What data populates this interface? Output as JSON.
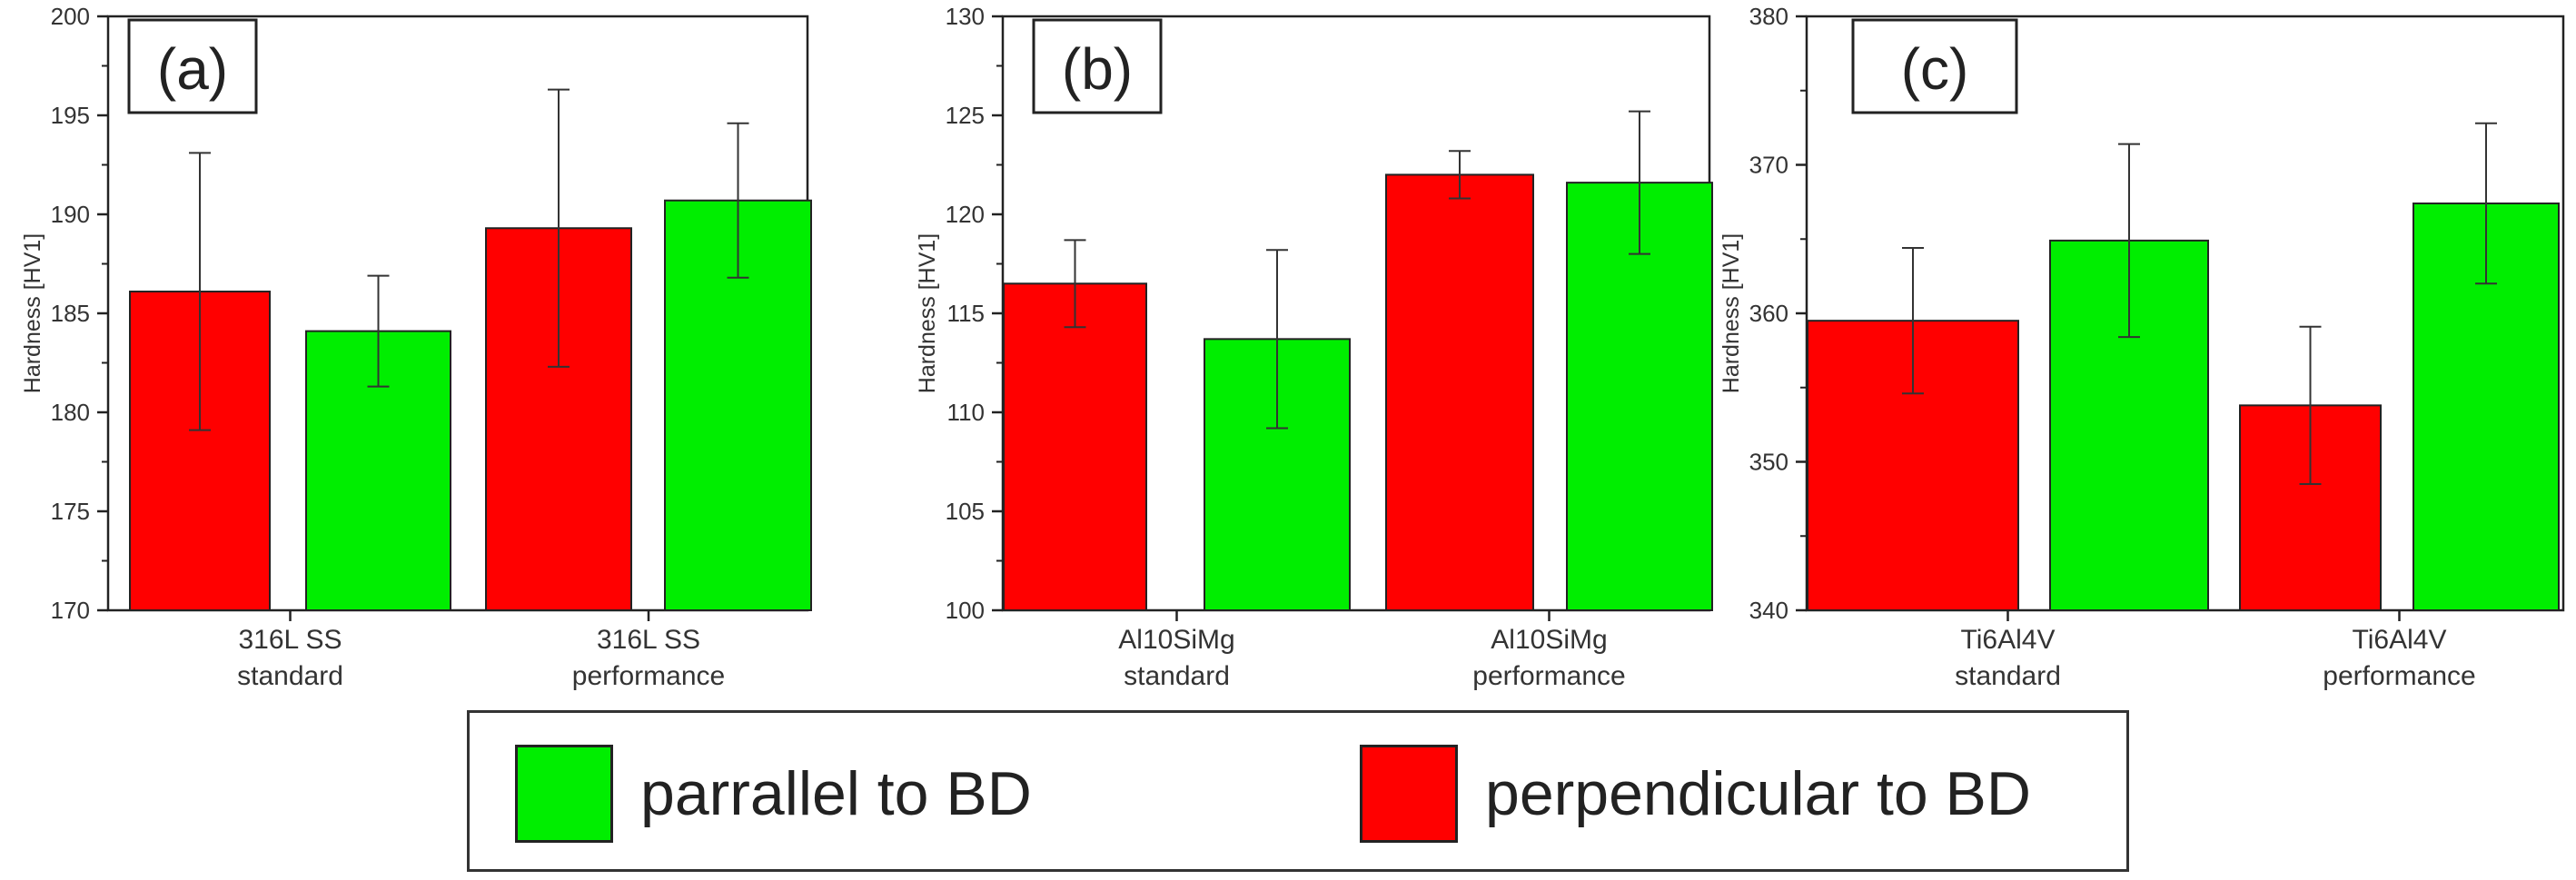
{
  "chart_data": [
    {
      "type": "bar",
      "panel_label": "(a)",
      "ylabel": "Hardness [HV1]",
      "ylim": [
        170,
        200
      ],
      "yticks": [
        170,
        175,
        180,
        185,
        190,
        195,
        200
      ],
      "categories": [
        [
          "316L SS",
          "standard"
        ],
        [
          "316L SS",
          "performance"
        ]
      ],
      "series": [
        {
          "name": "perpendicular to BD",
          "color": "#ff0000",
          "values": [
            186.1,
            189.3
          ],
          "errors": [
            7.0,
            7.0
          ]
        },
        {
          "name": "parrallel to BD",
          "color": "#00ee00",
          "values": [
            184.1,
            190.7
          ],
          "errors": [
            2.8,
            3.9
          ]
        }
      ]
    },
    {
      "type": "bar",
      "panel_label": "(b)",
      "ylabel": "Hardness [HV1]",
      "ylim": [
        100,
        130
      ],
      "yticks": [
        100,
        105,
        110,
        115,
        120,
        125,
        130
      ],
      "categories": [
        [
          "Al10SiMg",
          "standard"
        ],
        [
          "Al10SiMg",
          "performance"
        ]
      ],
      "series": [
        {
          "name": "perpendicular to BD",
          "color": "#ff0000",
          "values": [
            116.5,
            122.0
          ],
          "errors": [
            2.2,
            1.2
          ]
        },
        {
          "name": "parrallel to BD",
          "color": "#00ee00",
          "values": [
            113.7,
            121.6
          ],
          "errors": [
            4.5,
            3.6
          ]
        }
      ]
    },
    {
      "type": "bar",
      "panel_label": "(c)",
      "ylabel": "Hardness [HV1]",
      "ylim": [
        340,
        380
      ],
      "yticks": [
        340,
        350,
        360,
        370,
        380
      ],
      "categories": [
        [
          "Ti6Al4V",
          "standard"
        ],
        [
          "Ti6Al4V",
          "performance"
        ]
      ],
      "series": [
        {
          "name": "perpendicular to BD",
          "color": "#ff0000",
          "values": [
            359.5,
            353.8
          ],
          "errors": [
            4.9,
            5.3
          ]
        },
        {
          "name": "parrallel to BD",
          "color": "#00ee00",
          "values": [
            364.9,
            367.4
          ],
          "errors": [
            6.5,
            5.4
          ]
        }
      ]
    }
  ],
  "legend": {
    "items": [
      {
        "label": "parrallel to BD",
        "color": "#00ee00"
      },
      {
        "label": "perpendicular to BD",
        "color": "#ff0000"
      }
    ]
  }
}
